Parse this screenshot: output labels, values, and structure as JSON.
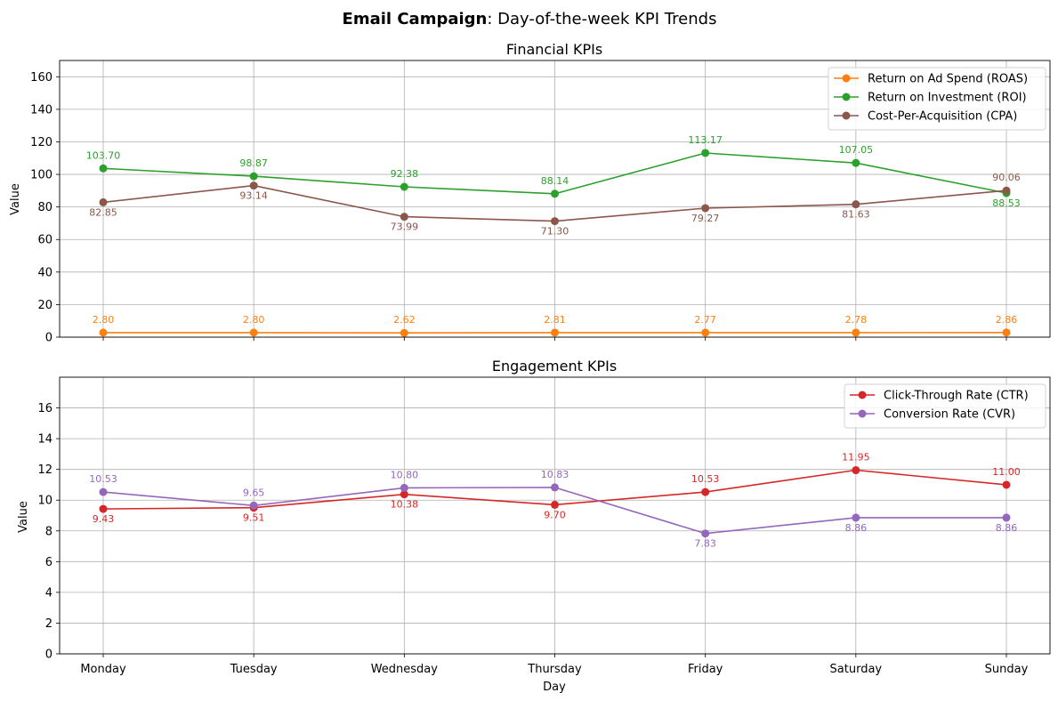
{
  "suptitle": {
    "bold": "Email Campaign",
    "rest": ": Day-of-the-week KPI Trends"
  },
  "chart_data": [
    {
      "type": "line",
      "title": "Financial KPIs",
      "xlabel": "",
      "ylabel": "Value",
      "categories": [
        "Monday",
        "Tuesday",
        "Wednesday",
        "Thursday",
        "Friday",
        "Saturday",
        "Sunday"
      ],
      "ylim": [
        0,
        170
      ],
      "yticks": [
        0,
        20,
        40,
        60,
        80,
        100,
        120,
        140,
        160
      ],
      "grid": true,
      "legend_position": "top-right",
      "series": [
        {
          "name": "Return on Ad Spend (ROAS)",
          "color": "#ff7f0e",
          "label_side": "above",
          "values": [
            2.8,
            2.8,
            2.62,
            2.81,
            2.77,
            2.78,
            2.86
          ],
          "labels": [
            "2.80",
            "2.80",
            "2.62",
            "2.81",
            "2.77",
            "2.78",
            "2.86"
          ]
        },
        {
          "name": "Return on Investment (ROI)",
          "color": "#2ca02c",
          "label_side": "above",
          "values": [
            103.7,
            98.87,
            92.38,
            88.14,
            113.17,
            107.05,
            88.53
          ],
          "labels": [
            "103.70",
            "98.87",
            "92.38",
            "88.14",
            "113.17",
            "107.05",
            "88.53"
          ],
          "label_sides": [
            "above",
            "above",
            "above",
            "above",
            "above",
            "above",
            "below"
          ]
        },
        {
          "name": "Cost-Per-Acquisition (CPA)",
          "color": "#8c564b",
          "label_side": "below",
          "values": [
            82.85,
            93.14,
            73.99,
            71.3,
            79.27,
            81.63,
            90.06
          ],
          "labels": [
            "82.85",
            "93.14",
            "73.99",
            "71.30",
            "79.27",
            "81.63",
            "90.06"
          ],
          "label_sides": [
            "below",
            "below",
            "below",
            "below",
            "below",
            "below",
            "above"
          ]
        }
      ]
    },
    {
      "type": "line",
      "title": "Engagement KPIs",
      "xlabel": "Day",
      "ylabel": "Value",
      "categories": [
        "Monday",
        "Tuesday",
        "Wednesday",
        "Thursday",
        "Friday",
        "Saturday",
        "Sunday"
      ],
      "ylim": [
        0,
        18
      ],
      "yticks": [
        0,
        2,
        4,
        6,
        8,
        10,
        12,
        14,
        16
      ],
      "grid": true,
      "legend_position": "top-right",
      "series": [
        {
          "name": "Click-Through Rate (CTR)",
          "color": "#d62728",
          "values": [
            9.43,
            9.51,
            10.38,
            9.7,
            10.53,
            11.95,
            11.0
          ],
          "labels": [
            "9.43",
            "9.51",
            "10.38",
            "9.70",
            "10.53",
            "11.95",
            "11.00"
          ],
          "label_sides": [
            "below",
            "below",
            "below",
            "below",
            "above",
            "above",
            "above"
          ]
        },
        {
          "name": "Conversion Rate (CVR)",
          "color": "#9467bd",
          "values": [
            10.53,
            9.65,
            10.8,
            10.83,
            7.83,
            8.86,
            8.86
          ],
          "labels": [
            "10.53",
            "9.65",
            "10.80",
            "10.83",
            "7.83",
            "8.86",
            "8.86"
          ],
          "label_sides": [
            "above",
            "above",
            "above",
            "above",
            "below",
            "below",
            "below"
          ]
        }
      ]
    }
  ]
}
